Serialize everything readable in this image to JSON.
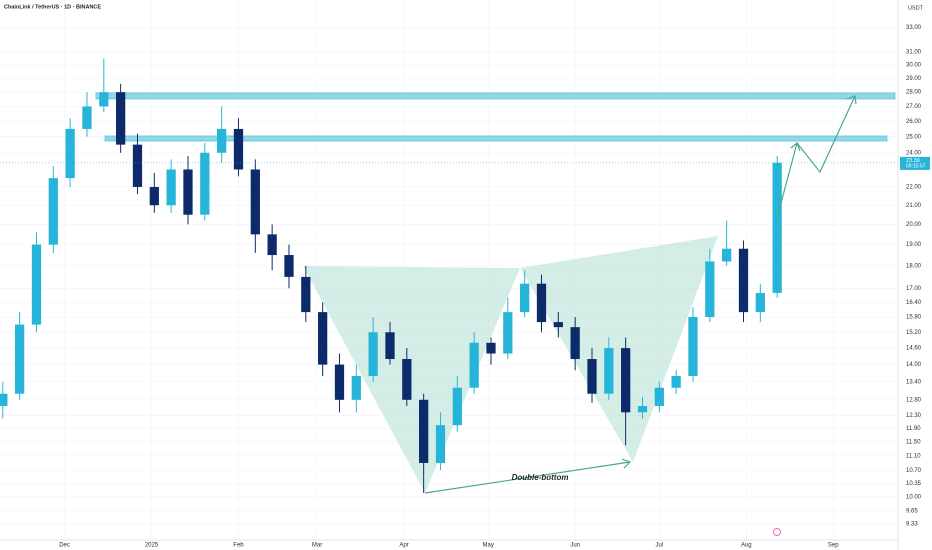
{
  "chart_data": {
    "type": "candlestick",
    "title": "ChainLink / TetherUS · 1D · BINANCE",
    "currency": "USDT",
    "annotation": "Double-bottom",
    "last_price": 23.39,
    "countdown": "09:15:57",
    "log_scale": true,
    "up_color": "#26b5d9",
    "down_color": "#0d2b6b",
    "x": [
      -22,
      -16,
      -10,
      -4,
      2,
      8,
      14,
      20,
      26,
      32,
      38,
      44,
      50,
      56,
      62,
      68,
      74,
      80,
      86,
      92,
      98,
      104,
      110,
      116,
      122,
      128,
      134,
      140,
      146,
      152,
      158,
      164,
      170,
      176,
      182,
      188,
      194,
      200,
      206,
      212,
      218,
      224,
      230,
      236,
      242,
      248,
      254
    ],
    "open": [
      12.6,
      13.0,
      15.5,
      19.0,
      22.5,
      25.5,
      27.0,
      28.0,
      24.5,
      22.0,
      21.0,
      23.0,
      20.5,
      24.0,
      25.5,
      23.0,
      19.5,
      18.5,
      17.5,
      16.0,
      14.0,
      12.8,
      13.6,
      15.2,
      14.2,
      12.8,
      10.9,
      12.0,
      13.2,
      14.8,
      14.4,
      16.0,
      17.2,
      15.6,
      15.4,
      14.2,
      13.0,
      14.6,
      12.4,
      12.6,
      13.2,
      13.6,
      15.8,
      18.2,
      18.8,
      16.0,
      16.8
    ],
    "high": [
      13.4,
      16.0,
      19.6,
      23.2,
      26.2,
      28.0,
      30.5,
      28.6,
      25.2,
      22.8,
      23.6,
      23.8,
      24.6,
      27.0,
      26.2,
      23.6,
      20.0,
      19.0,
      18.0,
      16.4,
      14.4,
      14.0,
      15.8,
      15.6,
      14.6,
      13.0,
      12.4,
      13.6,
      15.2,
      15.0,
      16.6,
      17.8,
      17.6,
      16.0,
      15.8,
      14.6,
      15.0,
      15.0,
      12.9,
      13.4,
      13.8,
      16.2,
      18.8,
      20.2,
      19.2,
      17.2,
      23.8
    ],
    "low": [
      12.2,
      12.8,
      15.2,
      18.6,
      22.0,
      25.0,
      26.6,
      24.0,
      21.6,
      20.6,
      20.6,
      20.0,
      20.2,
      23.4,
      22.6,
      18.6,
      17.8,
      17.0,
      15.6,
      13.6,
      12.4,
      12.4,
      13.4,
      14.0,
      12.6,
      10.1,
      10.7,
      11.8,
      13.0,
      14.0,
      14.2,
      15.8,
      15.2,
      15.0,
      13.8,
      12.7,
      12.8,
      11.4,
      12.2,
      12.4,
      13.0,
      13.4,
      15.6,
      18.0,
      15.6,
      15.6,
      16.6
    ],
    "close": [
      13.0,
      15.5,
      19.0,
      22.5,
      25.5,
      27.0,
      28.0,
      24.5,
      22.0,
      21.0,
      23.0,
      20.5,
      24.0,
      25.5,
      23.0,
      19.5,
      18.5,
      17.5,
      16.0,
      14.0,
      12.8,
      13.6,
      15.2,
      14.2,
      12.8,
      10.9,
      12.0,
      13.2,
      14.8,
      14.4,
      16.0,
      17.2,
      15.6,
      15.4,
      14.2,
      13.0,
      14.6,
      12.4,
      12.6,
      13.2,
      13.6,
      15.8,
      18.2,
      18.8,
      16.0,
      16.8,
      23.4
    ],
    "xlim": [
      -23,
      296
    ],
    "xticks": [
      {
        "value": 0,
        "label": "Dec"
      },
      {
        "value": 31,
        "label": "2025"
      },
      {
        "value": 62,
        "label": "Feb"
      },
      {
        "value": 90,
        "label": "Mar"
      },
      {
        "value": 121,
        "label": "Apr"
      },
      {
        "value": 151,
        "label": "May"
      },
      {
        "value": 182,
        "label": "Jun"
      },
      {
        "value": 212,
        "label": "Jul"
      },
      {
        "value": 243,
        "label": "Aug"
      },
      {
        "value": 274,
        "label": "Sep"
      }
    ],
    "ylim": [
      8.96,
      35.4
    ],
    "yticks": [
      {
        "value": 33,
        "label": "33.00"
      },
      {
        "value": 31,
        "label": "31.00"
      },
      {
        "value": 30,
        "label": "30.00"
      },
      {
        "value": 29,
        "label": "29.00"
      },
      {
        "value": 28,
        "label": "28.00"
      },
      {
        "value": 27,
        "label": "27.00"
      },
      {
        "value": 26,
        "label": "26.00"
      },
      {
        "value": 25,
        "label": "25.00"
      },
      {
        "value": 24,
        "label": "24.00"
      },
      {
        "value": 22,
        "label": "22.00"
      },
      {
        "value": 21,
        "label": "21.00"
      },
      {
        "value": 20,
        "label": "20.00"
      },
      {
        "value": 19,
        "label": "19.00"
      },
      {
        "value": 18,
        "label": "18.00"
      },
      {
        "value": 17,
        "label": "17.00"
      },
      {
        "value": 16.4,
        "label": "16.40"
      },
      {
        "value": 15.8,
        "label": "15.80"
      },
      {
        "value": 15.2,
        "label": "15.20"
      },
      {
        "value": 14.6,
        "label": "14.60"
      },
      {
        "value": 14,
        "label": "14.00"
      },
      {
        "value": 13.4,
        "label": "13.40"
      },
      {
        "value": 12.8,
        "label": "12.80"
      },
      {
        "value": 12.3,
        "label": "12.30"
      },
      {
        "value": 11.9,
        "label": "11.90"
      },
      {
        "value": 11.5,
        "label": "11.50"
      },
      {
        "value": 11.1,
        "label": "11.10"
      },
      {
        "value": 10.7,
        "label": "10.70"
      },
      {
        "value": 10.35,
        "label": "10.35"
      },
      {
        "value": 10,
        "label": "10.00"
      },
      {
        "value": 9.65,
        "label": "9.65"
      },
      {
        "value": 9.33,
        "label": "9.33"
      }
    ]
  }
}
